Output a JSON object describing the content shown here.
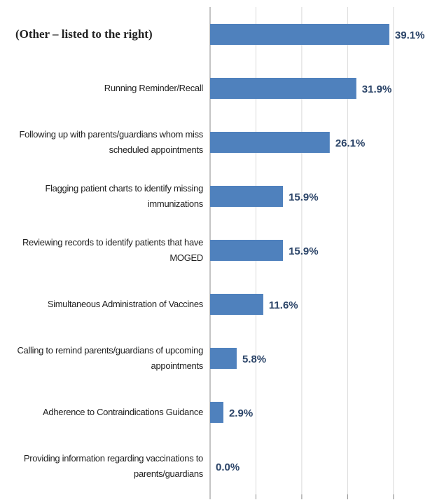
{
  "chart_data": {
    "type": "bar",
    "orientation": "horizontal",
    "categories": [
      "(Other – listed to the right)",
      "Running Reminder/Recall",
      "Following up with parents/guardians whom miss scheduled appointments",
      "Flagging patient charts to identify missing immunizations",
      "Reviewing records to identify patients that have MOGED",
      "Simultaneous Administration of Vaccines",
      "Calling to remind parents/guardians of upcoming appointments",
      "Adherence to Contraindications Guidance",
      "Providing information regarding vaccinations to parents/guardians"
    ],
    "values": [
      39.1,
      31.9,
      26.1,
      15.9,
      15.9,
      11.6,
      5.8,
      2.9,
      0.0
    ],
    "value_labels": [
      "39.1%",
      "31.9%",
      "26.1%",
      "15.9%",
      "15.9%",
      "11.6%",
      "5.8%",
      "2.9%",
      "0.0%"
    ],
    "color": "#4f81bd",
    "xlim": [
      0,
      49.5
    ],
    "xticks": [
      0,
      10,
      20,
      30,
      40
    ],
    "grid": true
  }
}
